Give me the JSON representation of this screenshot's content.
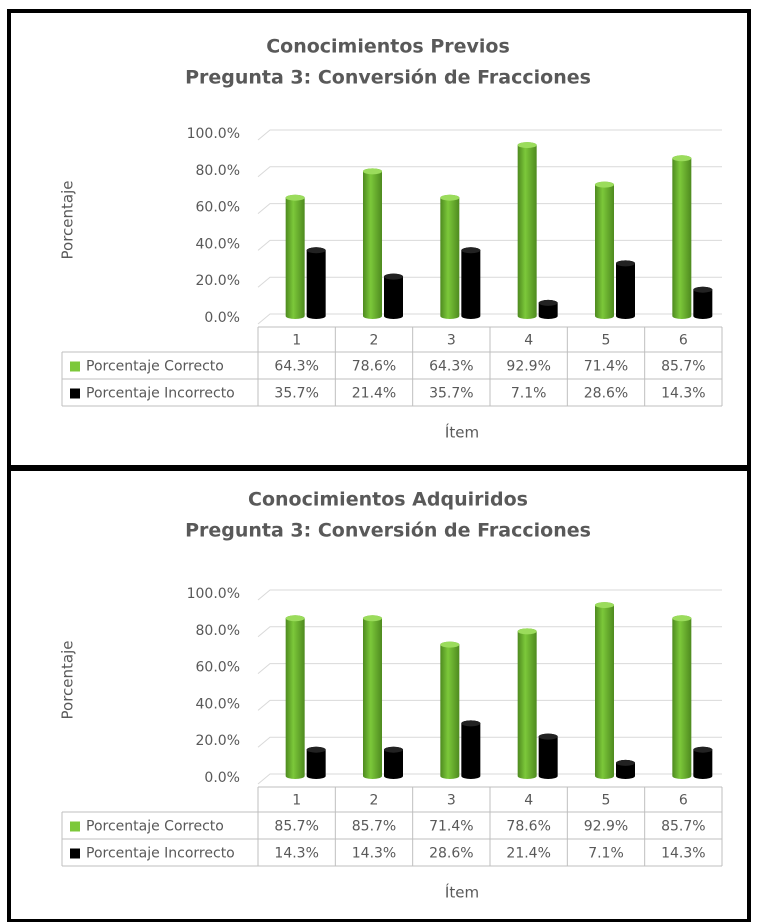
{
  "chart_data": [
    {
      "type": "bar",
      "title": "Conocimientos Previos",
      "subtitle": "Pregunta 3: Conversión de Fracciones",
      "ylabel": "Porcentaje",
      "xlabel": "Ítem",
      "categories": [
        "1",
        "2",
        "3",
        "4",
        "5",
        "6"
      ],
      "series": [
        {
          "name": "Porcentaje Correcto",
          "color": "#7cc83a",
          "values": [
            64.3,
            78.6,
            64.3,
            92.9,
            71.4,
            85.7
          ],
          "value_labels": [
            "64.3%",
            "78.6%",
            "64.3%",
            "92.9%",
            "71.4%",
            "85.7%"
          ]
        },
        {
          "name": "Porcentaje Incorrecto",
          "color": "#000000",
          "values": [
            35.7,
            21.4,
            35.7,
            7.1,
            28.6,
            14.3
          ],
          "value_labels": [
            "35.7%",
            "21.4%",
            "35.7%",
            "7.1%",
            "28.6%",
            "14.3%"
          ]
        }
      ],
      "ylim": [
        0,
        100
      ],
      "yticks": [
        {
          "value": 0,
          "label": "0.0%"
        },
        {
          "value": 20,
          "label": "20.0%"
        },
        {
          "value": 40,
          "label": "40.0%"
        },
        {
          "value": 60,
          "label": "60.0%"
        },
        {
          "value": 80,
          "label": "80.0%"
        },
        {
          "value": 100,
          "label": "100.0%"
        }
      ],
      "grid": true
    },
    {
      "type": "bar",
      "title": "Conocimientos Adquiridos",
      "subtitle": "Pregunta 3: Conversión de Fracciones",
      "ylabel": "Porcentaje",
      "xlabel": "Ítem",
      "categories": [
        "1",
        "2",
        "3",
        "4",
        "5",
        "6"
      ],
      "series": [
        {
          "name": "Porcentaje Correcto",
          "color": "#7cc83a",
          "values": [
            85.7,
            85.7,
            71.4,
            78.6,
            92.9,
            85.7
          ],
          "value_labels": [
            "85.7%",
            "85.7%",
            "71.4%",
            "78.6%",
            "92.9%",
            "85.7%"
          ]
        },
        {
          "name": "Porcentaje Incorrecto",
          "color": "#000000",
          "values": [
            14.3,
            14.3,
            28.6,
            21.4,
            7.1,
            14.3
          ],
          "value_labels": [
            "14.3%",
            "14.3%",
            "28.6%",
            "21.4%",
            "7.1%",
            "14.3%"
          ]
        }
      ],
      "ylim": [
        0,
        100
      ],
      "yticks": [
        {
          "value": 0,
          "label": "0.0%"
        },
        {
          "value": 20,
          "label": "20.0%"
        },
        {
          "value": 40,
          "label": "40.0%"
        },
        {
          "value": 60,
          "label": "60.0%"
        },
        {
          "value": 80,
          "label": "80.0%"
        },
        {
          "value": 100,
          "label": "100.0%"
        }
      ],
      "grid": true
    }
  ]
}
